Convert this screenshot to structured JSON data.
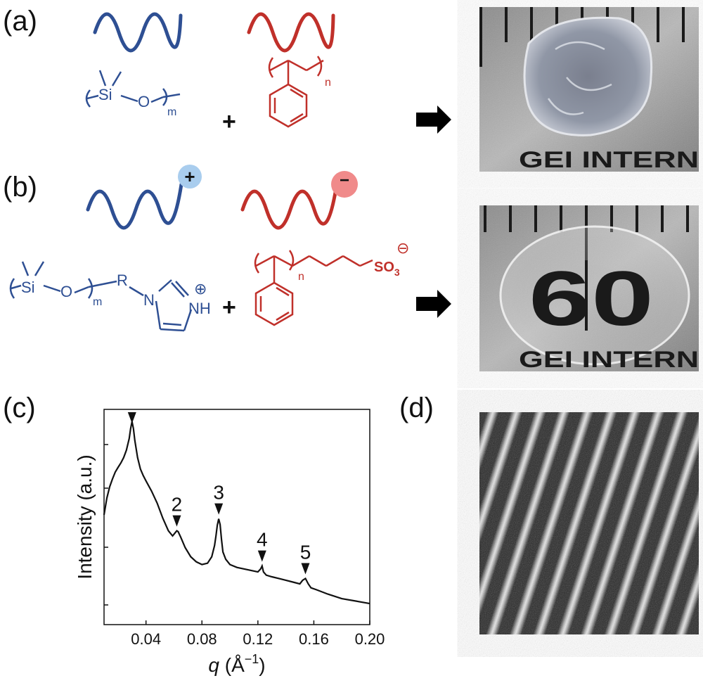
{
  "panels": {
    "a": "(a)",
    "b": "(b)",
    "c": "(c)",
    "d": "(d)"
  },
  "colors": {
    "pdms": "#2e4f93",
    "ps": "#c0302a",
    "cation_bubble": "#a9cdee",
    "anion_bubble": "#f08a8a"
  },
  "chemistry": {
    "a": {
      "pdms_si": "Si",
      "pdms_o": "O",
      "pdms_sub": "m",
      "ps_sub": "n",
      "plus": "+"
    },
    "b": {
      "pdms_si": "Si",
      "pdms_o": "O",
      "pdms_sub": "m",
      "r_group": "R",
      "n_atom": "N",
      "nh_atom": "NH",
      "imid_charge": "⊕",
      "ps_sub": "n",
      "sulfonate": "SO",
      "sulfonate_sub": "3",
      "sulfonate_charge": "⊖",
      "plus": "+",
      "cation_sign": "+",
      "anion_sign": "−"
    }
  },
  "photos": {
    "a_text": "GEI INTERN",
    "b_digits": "60",
    "b_text": "GEI INTERN"
  },
  "chart_data": {
    "type": "line",
    "xlabel_symbol": "q",
    "xlabel_unit": "(Å",
    "xlabel_exp": "−1",
    "xlabel_close": ")",
    "ylabel": "Intensity (a.u.)",
    "xlim": [
      0.01,
      0.2
    ],
    "yscale": "log",
    "xticks": [
      "0.04",
      "0.08",
      "0.12",
      "0.16",
      "0.20"
    ],
    "xtick_values": [
      0.04,
      0.08,
      0.12,
      0.16,
      0.2
    ],
    "peaks": [
      {
        "label": "",
        "q": 0.03
      },
      {
        "label": "2",
        "q": 0.062
      },
      {
        "label": "3",
        "q": 0.092
      },
      {
        "label": "4",
        "q": 0.123
      },
      {
        "label": "5",
        "q": 0.154
      }
    ],
    "series": [
      {
        "x": [
          0.01,
          0.012,
          0.014,
          0.016,
          0.018,
          0.02,
          0.022,
          0.024,
          0.026,
          0.028,
          0.029,
          0.03,
          0.031,
          0.032,
          0.034,
          0.036,
          0.038,
          0.04,
          0.044,
          0.048,
          0.052,
          0.056,
          0.059,
          0.061,
          0.062,
          0.063,
          0.065,
          0.068,
          0.072,
          0.076,
          0.08,
          0.084,
          0.087,
          0.089,
          0.09,
          0.091,
          0.092,
          0.093,
          0.094,
          0.095,
          0.097,
          0.1,
          0.105,
          0.11,
          0.115,
          0.12,
          0.122,
          0.123,
          0.124,
          0.126,
          0.13,
          0.135,
          0.14,
          0.145,
          0.15,
          0.152,
          0.154,
          0.156,
          0.158,
          0.162,
          0.17,
          0.18,
          0.19,
          0.2
        ],
        "y": [
          1.0,
          1.3,
          1.55,
          1.75,
          1.95,
          2.1,
          2.25,
          2.45,
          2.75,
          3.3,
          3.85,
          4.3,
          3.85,
          3.2,
          2.45,
          2.05,
          1.85,
          1.7,
          1.45,
          1.2,
          0.95,
          0.78,
          0.72,
          0.76,
          0.78,
          0.77,
          0.7,
          0.6,
          0.52,
          0.48,
          0.46,
          0.47,
          0.52,
          0.62,
          0.72,
          0.85,
          0.94,
          0.86,
          0.68,
          0.56,
          0.5,
          0.46,
          0.44,
          0.43,
          0.42,
          0.41,
          0.43,
          0.45,
          0.41,
          0.39,
          0.38,
          0.37,
          0.36,
          0.35,
          0.34,
          0.36,
          0.37,
          0.34,
          0.32,
          0.31,
          0.29,
          0.27,
          0.26,
          0.25
        ]
      }
    ]
  }
}
